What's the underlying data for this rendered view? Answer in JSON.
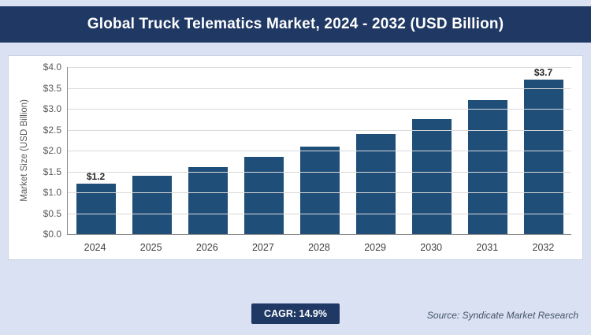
{
  "header": {
    "title": "Global Truck Telematics Market, 2024 - 2032 (USD Billion)"
  },
  "theme": {
    "page_bg": "#d9e1f2",
    "header_bg": "#1f3864",
    "badge_bg": "#1f3864",
    "bar_color": "#1f4e79"
  },
  "chart_data": {
    "type": "bar",
    "title": "Global Truck Telematics Market, 2024 - 2032 (USD Billion)",
    "categories": [
      "2024",
      "2025",
      "2026",
      "2027",
      "2028",
      "2029",
      "2030",
      "2031",
      "2032"
    ],
    "values": [
      1.2,
      1.4,
      1.6,
      1.85,
      2.1,
      2.4,
      2.75,
      3.2,
      3.7
    ],
    "value_labels": [
      "$1.2",
      "",
      "",
      "",
      "",
      "",
      "",
      "",
      "$3.7"
    ],
    "xlabel": "",
    "ylabel": "Market Size (USD Billion)",
    "ylim": [
      0,
      4.0
    ],
    "ytick_step": 0.5,
    "yticks": [
      "$0.0",
      "$0.5",
      "$1.0",
      "$1.5",
      "$2.0",
      "$2.5",
      "$3.0",
      "$3.5",
      "$4.0"
    ],
    "grid": true,
    "legend": "none",
    "bar_color": "#1f4e79"
  },
  "footer": {
    "cagr_label": "CAGR: 14.9%",
    "source": "Source: Syndicate Market Research"
  }
}
